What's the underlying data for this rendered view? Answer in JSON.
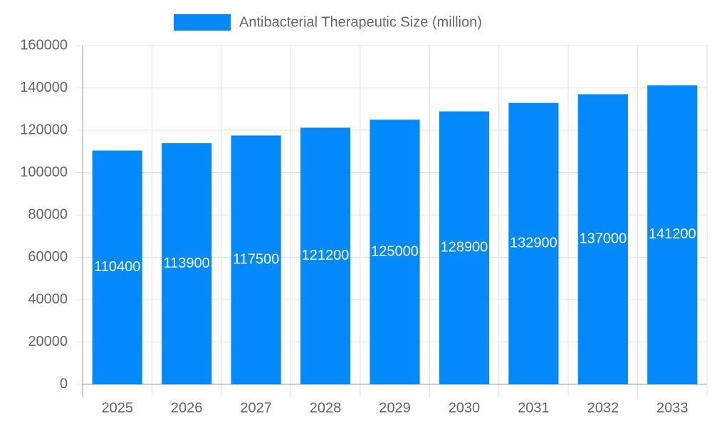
{
  "chart_data": {
    "type": "bar",
    "categories": [
      "2025",
      "2026",
      "2027",
      "2028",
      "2029",
      "2030",
      "2031",
      "2032",
      "2033"
    ],
    "series": [
      {
        "name": "Antibacterial Therapeutic Size (million)",
        "color": "#0389fa",
        "values": [
          110400,
          113900,
          117500,
          121200,
          125000,
          128900,
          132900,
          137000,
          141200
        ]
      }
    ],
    "ylim": [
      0,
      160000
    ],
    "yticks": [
      0,
      20000,
      40000,
      60000,
      80000,
      100000,
      120000,
      140000,
      160000
    ],
    "grid": true,
    "legend": "top"
  }
}
